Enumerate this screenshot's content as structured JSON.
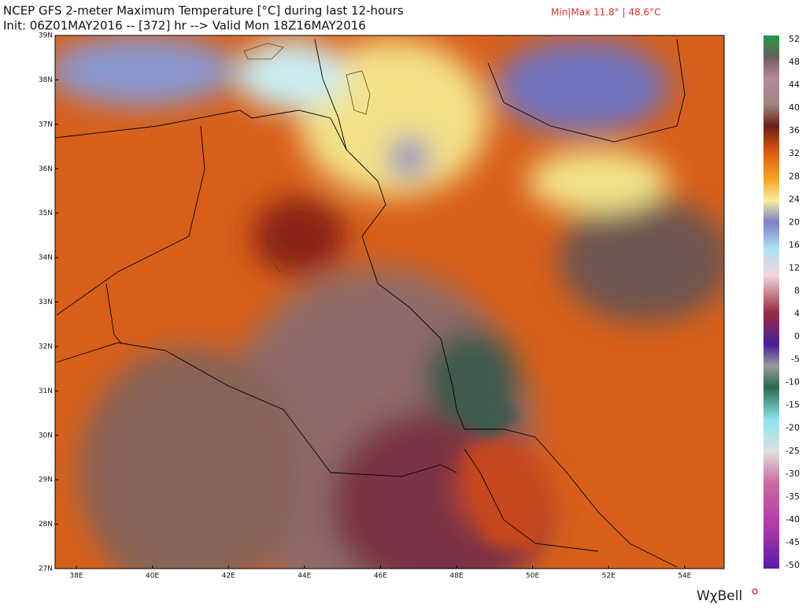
{
  "header": {
    "title": "NCEP GFS 2-meter Maximum Temperature [°C] during last 12-hours",
    "subtitle": "Init: 06Z01MAY2016 -- [372] hr --> Valid Mon 18Z16MAY2016",
    "minmax": "Min|Max 11.8° | 48.6°C"
  },
  "map": {
    "lat_labels": [
      "39N",
      "38N",
      "37N",
      "36N",
      "35N",
      "34N",
      "33N",
      "32N",
      "31N",
      "30N",
      "29N",
      "28N",
      "27N"
    ],
    "lon_labels": [
      "38E",
      "40E",
      "42E",
      "44E",
      "46E",
      "48E",
      "50E",
      "52E",
      "54E"
    ]
  },
  "colorbar": {
    "labels": [
      52,
      48,
      44,
      40,
      36,
      32,
      28,
      24,
      20,
      16,
      12,
      8,
      4,
      0,
      -5,
      -10,
      -15,
      -20,
      -25,
      -30,
      -35,
      -40,
      -45,
      -50
    ]
  },
  "brand": "WχBell"
}
